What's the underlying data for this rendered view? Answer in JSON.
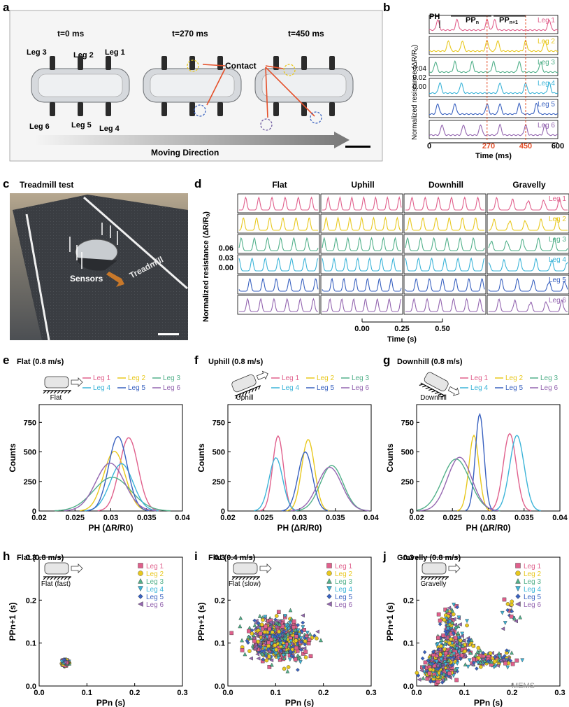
{
  "colors": {
    "leg1": "#e0608c",
    "leg2": "#e8c81e",
    "leg3": "#52b08a",
    "leg4": "#3cb4d8",
    "leg5": "#3a62c0",
    "leg6": "#9466b0",
    "accent_red": "#e5502a"
  },
  "watermark": "MEMS",
  "panel_a": {
    "label": "a",
    "times": [
      "t=0 ms",
      "t=270 ms",
      "t=450 ms"
    ],
    "leg_labels": [
      "Leg 3",
      "Leg 2",
      "Leg 1",
      "Leg 6",
      "Leg 5",
      "Leg 4"
    ],
    "contact_label": "Contact",
    "moving_direction": "Moving Direction"
  },
  "panel_b": {
    "label": "b",
    "ylabel": "Normalized resistance (ΔR/R",
    "ylabel_sub": "0",
    "ylabel_end": ")",
    "yticks": [
      "0.04",
      "0.02",
      "0.00"
    ],
    "xticks": [
      "0",
      "270",
      "450",
      "600"
    ],
    "xlabel": "Time (ms)",
    "annot_ph": "PH",
    "annot_ppn": "PP",
    "annot_ppn_sub": "n",
    "annot_ppn1": "PP",
    "annot_ppn1_sub": "n+1",
    "legs": [
      "Leg 1",
      "Leg 2",
      "Leg 3",
      "Leg 4",
      "Leg 5",
      "Leg 6"
    ]
  },
  "panel_c": {
    "label": "c",
    "title": "Treadmill test",
    "sensors_label": "Sensors",
    "treadmill_label": "Treadmill"
  },
  "panel_d": {
    "label": "d",
    "columns": [
      "Flat",
      "Uphill",
      "Downhill",
      "Gravelly"
    ],
    "legs": [
      "Leg 1",
      "Leg 2",
      "Leg 3",
      "Leg 4",
      "Leg 5",
      "Leg 6"
    ],
    "ylabel": "Normalized resistance (ΔR/R",
    "ylabel_sub": "0",
    "ylabel_end": ")",
    "yticks": [
      "0.06",
      "0.03",
      "0.00"
    ],
    "xticks": [
      "0.00",
      "0.25",
      "0.50"
    ],
    "xlabel": "Time (s)"
  },
  "legend_labels": [
    "Leg 1",
    "Leg 2",
    "Leg 3",
    "Leg 4",
    "Leg 5",
    "Leg 6"
  ],
  "chart_data": [
    {
      "id": "e",
      "type": "line",
      "title": "Flat (0.8 m/s)",
      "inset_label": "Flat",
      "xlabel": "PH (ΔR/R0)",
      "ylabel": "Counts",
      "xlim": [
        0.02,
        0.04
      ],
      "ylim": [
        0,
        900
      ],
      "xticks": [
        "0.02",
        "0.025",
        "0.03",
        "0.035",
        "0.04"
      ],
      "yticks": [
        "0",
        "250",
        "500",
        "750"
      ],
      "series": [
        {
          "name": "Leg 1",
          "mu": 0.0325,
          "sigma": 0.0013,
          "peak": 620
        },
        {
          "name": "Leg 2",
          "mu": 0.0305,
          "sigma": 0.0015,
          "peak": 505
        },
        {
          "name": "Leg 3",
          "mu": 0.0302,
          "sigma": 0.0026,
          "peak": 285
        },
        {
          "name": "Leg 4",
          "mu": 0.0315,
          "sigma": 0.0016,
          "peak": 400
        },
        {
          "name": "Leg 5",
          "mu": 0.031,
          "sigma": 0.0013,
          "peak": 630
        },
        {
          "name": "Leg 6",
          "mu": 0.0299,
          "sigma": 0.002,
          "peak": 405
        }
      ]
    },
    {
      "id": "f",
      "type": "line",
      "title": "Uphill (0.8 m/s)",
      "inset_label": "Uphill",
      "xlabel": "PH (ΔR/R0)",
      "ylabel": "Counts",
      "xlim": [
        0.02,
        0.04
      ],
      "ylim": [
        0,
        900
      ],
      "xticks": [
        "0.02",
        "0.025",
        "0.03",
        "0.035",
        "0.04"
      ],
      "yticks": [
        "0",
        "250",
        "500",
        "750"
      ],
      "series": [
        {
          "name": "Leg 1",
          "mu": 0.027,
          "sigma": 0.00075,
          "peak": 635
        },
        {
          "name": "Leg 2",
          "mu": 0.0312,
          "sigma": 0.0009,
          "peak": 605
        },
        {
          "name": "Leg 3",
          "mu": 0.0345,
          "sigma": 0.0016,
          "peak": 385
        },
        {
          "name": "Leg 4",
          "mu": 0.0267,
          "sigma": 0.00095,
          "peak": 450
        },
        {
          "name": "Leg 5",
          "mu": 0.0308,
          "sigma": 0.001,
          "peak": 500
        },
        {
          "name": "Leg 6",
          "mu": 0.0342,
          "sigma": 0.0017,
          "peak": 370
        }
      ]
    },
    {
      "id": "g",
      "type": "line",
      "title": "Downhill (0.8 m/s)",
      "inset_label": "Downhill",
      "xlabel": "PH (ΔR/R0)",
      "ylabel": "Counts",
      "xlim": [
        0.02,
        0.04
      ],
      "ylim": [
        0,
        900
      ],
      "xticks": [
        "0.02",
        "0.025",
        "0.03",
        "0.035",
        "0.04"
      ],
      "yticks": [
        "0",
        "250",
        "500",
        "750"
      ],
      "series": [
        {
          "name": "Leg 1",
          "mu": 0.033,
          "sigma": 0.0009,
          "peak": 655
        },
        {
          "name": "Leg 2",
          "mu": 0.028,
          "sigma": 0.0007,
          "peak": 640
        },
        {
          "name": "Leg 3",
          "mu": 0.0255,
          "sigma": 0.0019,
          "peak": 440
        },
        {
          "name": "Leg 4",
          "mu": 0.034,
          "sigma": 0.001,
          "peak": 640
        },
        {
          "name": "Leg 5",
          "mu": 0.0288,
          "sigma": 0.0006,
          "peak": 820
        },
        {
          "name": "Leg 6",
          "mu": 0.026,
          "sigma": 0.0017,
          "peak": 455
        }
      ]
    },
    {
      "id": "h",
      "type": "scatter",
      "title": "Flat (0.8 m/s)",
      "inset_label": "Flat (fast)",
      "xlabel": "PPn (s)",
      "ylabel": "PPn+1 (s)",
      "xlim": [
        0,
        0.3
      ],
      "ylim": [
        0,
        0.3
      ],
      "xticks": [
        "0.0",
        "0.1",
        "0.2",
        "0.3"
      ],
      "yticks": [
        "0.0",
        "0.1",
        "0.2",
        "0.3"
      ],
      "clusters": [
        {
          "cx": 0.055,
          "cy": 0.055,
          "sx": 0.003,
          "sy": 0.003,
          "n": 40
        }
      ]
    },
    {
      "id": "i",
      "type": "scatter",
      "title": "Flat (0.4 m/s)",
      "inset_label": "Flat (slow)",
      "xlabel": "PPn (s)",
      "ylabel": "PPn+1 (s)",
      "xlim": [
        0,
        0.3
      ],
      "ylim": [
        0,
        0.3
      ],
      "xticks": [
        "0.0",
        "0.1",
        "0.2",
        "0.3"
      ],
      "yticks": [
        "0.0",
        "0.1",
        "0.2",
        "0.3"
      ],
      "clusters": [
        {
          "cx": 0.105,
          "cy": 0.108,
          "sx": 0.028,
          "sy": 0.022,
          "n": 150
        }
      ]
    },
    {
      "id": "j",
      "type": "scatter",
      "title": "Gravelly (0.8 m/s)",
      "inset_label": "Gravelly",
      "xlabel": "PPn (s)",
      "ylabel": "PPn+1 (s)",
      "xlim": [
        0,
        0.3
      ],
      "ylim": [
        0,
        0.3
      ],
      "xticks": [
        "0.0",
        "0.1",
        "0.2",
        "0.3"
      ],
      "yticks": [
        "0.0",
        "0.1",
        "0.2",
        "0.3"
      ],
      "clusters": [
        {
          "cx": 0.045,
          "cy": 0.045,
          "sx": 0.015,
          "sy": 0.015,
          "n": 70
        },
        {
          "cx": 0.08,
          "cy": 0.085,
          "sx": 0.02,
          "sy": 0.02,
          "n": 30
        },
        {
          "cx": 0.07,
          "cy": 0.15,
          "sx": 0.01,
          "sy": 0.015,
          "n": 12
        },
        {
          "cx": 0.14,
          "cy": 0.06,
          "sx": 0.015,
          "sy": 0.008,
          "n": 10
        },
        {
          "cx": 0.18,
          "cy": 0.06,
          "sx": 0.02,
          "sy": 0.008,
          "n": 8
        },
        {
          "cx": 0.2,
          "cy": 0.17,
          "sx": 0.01,
          "sy": 0.02,
          "n": 3
        }
      ]
    }
  ]
}
